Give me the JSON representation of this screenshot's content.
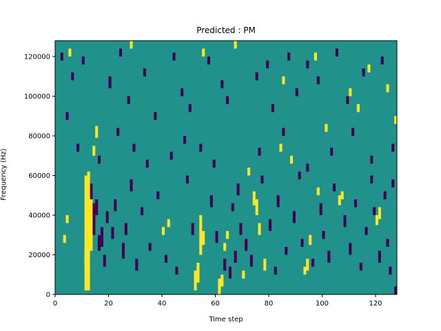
{
  "chart_data": {
    "type": "heatmap",
    "title": "Predicted : PM",
    "xlabel": "Time step",
    "ylabel": "Frequency (Hz)",
    "xlim": [
      0,
      128
    ],
    "ylim": [
      0,
      128000
    ],
    "xticks": [
      0,
      20,
      40,
      60,
      80,
      100,
      120
    ],
    "yticks": [
      0,
      20000,
      40000,
      60000,
      80000,
      100000,
      120000
    ],
    "xtick_labels": [
      "0",
      "20",
      "40",
      "60",
      "80",
      "100",
      "120"
    ],
    "ytick_labels": [
      "0",
      "20000",
      "40000",
      "60000",
      "80000",
      "100000",
      "120000"
    ],
    "n_time_steps": 128,
    "n_freq_bins": 128,
    "bin_height_hz": 1000,
    "background_value": 0,
    "colors": {
      "low": "#440154",
      "mid": "#21918c",
      "high": "#fde725"
    },
    "legend": "none",
    "grid": false,
    "high_cells": [
      [
        11,
        2,
        60
      ],
      [
        12,
        2,
        60
      ],
      [
        11,
        14,
        22
      ],
      [
        12,
        28,
        62
      ],
      [
        13,
        22,
        48
      ],
      [
        52,
        2,
        12
      ],
      [
        53,
        6,
        16
      ],
      [
        54,
        20,
        40
      ],
      [
        55,
        25,
        32
      ],
      [
        61,
        0,
        8
      ],
      [
        62,
        4,
        10
      ],
      [
        63,
        22,
        26
      ],
      [
        64,
        28,
        32
      ],
      [
        74,
        45,
        52
      ],
      [
        75,
        40,
        48
      ],
      [
        76,
        30,
        36
      ],
      [
        78,
        12,
        18
      ],
      [
        93,
        10,
        14
      ],
      [
        94,
        12,
        18
      ],
      [
        95,
        25,
        30
      ],
      [
        106,
        45,
        50
      ],
      [
        107,
        48,
        52
      ],
      [
        120,
        35,
        40
      ],
      [
        121,
        38,
        44
      ],
      [
        15,
        79,
        85
      ],
      [
        14,
        70,
        75
      ],
      [
        4,
        36,
        40
      ],
      [
        3,
        26,
        30
      ],
      [
        40,
        30,
        34
      ],
      [
        42,
        34,
        38
      ],
      [
        70,
        8,
        12
      ],
      [
        72,
        60,
        64
      ],
      [
        84,
        72,
        76
      ],
      [
        88,
        66,
        70
      ],
      [
        98,
        50,
        54
      ],
      [
        101,
        82,
        86
      ],
      [
        110,
        100,
        104
      ],
      [
        117,
        112,
        116
      ],
      [
        124,
        102,
        106
      ],
      [
        127,
        86,
        90
      ],
      [
        5,
        120,
        124
      ],
      [
        28,
        124,
        128
      ],
      [
        55,
        120,
        124
      ],
      [
        67,
        124,
        128
      ],
      [
        85,
        106,
        110
      ],
      [
        97,
        118,
        122
      ],
      [
        113,
        92,
        96
      ]
    ],
    "low_cells": [
      [
        13,
        36,
        56
      ],
      [
        14,
        30,
        46
      ],
      [
        15,
        40,
        48
      ],
      [
        16,
        22,
        30
      ],
      [
        17,
        24,
        34
      ],
      [
        18,
        14,
        20
      ],
      [
        19,
        36,
        42
      ],
      [
        21,
        28,
        34
      ],
      [
        22,
        42,
        48
      ],
      [
        25,
        18,
        26
      ],
      [
        26,
        30,
        36
      ],
      [
        28,
        52,
        58
      ],
      [
        30,
        12,
        18
      ],
      [
        32,
        40,
        44
      ],
      [
        35,
        22,
        26
      ],
      [
        38,
        48,
        52
      ],
      [
        41,
        16,
        20
      ],
      [
        45,
        10,
        14
      ],
      [
        49,
        56,
        60
      ],
      [
        51,
        30,
        36
      ],
      [
        58,
        44,
        50
      ],
      [
        60,
        26,
        32
      ],
      [
        63,
        12,
        18
      ],
      [
        65,
        8,
        14
      ],
      [
        66,
        42,
        46
      ],
      [
        67,
        16,
        22
      ],
      [
        68,
        50,
        56
      ],
      [
        69,
        30,
        36
      ],
      [
        71,
        22,
        28
      ],
      [
        73,
        14,
        20
      ],
      [
        77,
        56,
        60
      ],
      [
        80,
        32,
        38
      ],
      [
        82,
        10,
        14
      ],
      [
        83,
        44,
        50
      ],
      [
        86,
        20,
        24
      ],
      [
        89,
        36,
        42
      ],
      [
        91,
        58,
        62
      ],
      [
        92,
        24,
        28
      ],
      [
        96,
        14,
        18
      ],
      [
        99,
        40,
        46
      ],
      [
        100,
        28,
        32
      ],
      [
        102,
        16,
        22
      ],
      [
        104,
        52,
        56
      ],
      [
        108,
        34,
        40
      ],
      [
        110,
        20,
        26
      ],
      [
        112,
        44,
        48
      ],
      [
        114,
        12,
        16
      ],
      [
        116,
        30,
        34
      ],
      [
        118,
        56,
        60
      ],
      [
        119,
        40,
        44
      ],
      [
        121,
        16,
        22
      ],
      [
        123,
        48,
        52
      ],
      [
        124,
        24,
        28
      ],
      [
        125,
        10,
        14
      ],
      [
        126,
        54,
        58
      ],
      [
        127,
        0,
        4
      ],
      [
        2,
        118,
        122
      ],
      [
        6,
        108,
        112
      ],
      [
        10,
        116,
        120
      ],
      [
        20,
        104,
        110
      ],
      [
        24,
        120,
        124
      ],
      [
        27,
        96,
        100
      ],
      [
        33,
        110,
        114
      ],
      [
        37,
        88,
        92
      ],
      [
        44,
        118,
        122
      ],
      [
        47,
        100,
        104
      ],
      [
        50,
        92,
        96
      ],
      [
        57,
        116,
        120
      ],
      [
        62,
        104,
        108
      ],
      [
        64,
        96,
        100
      ],
      [
        75,
        108,
        112
      ],
      [
        79,
        114,
        118
      ],
      [
        81,
        92,
        96
      ],
      [
        87,
        118,
        122
      ],
      [
        90,
        100,
        104
      ],
      [
        94,
        114,
        118
      ],
      [
        98,
        106,
        110
      ],
      [
        105,
        120,
        124
      ],
      [
        109,
        96,
        100
      ],
      [
        115,
        110,
        114
      ],
      [
        122,
        116,
        120
      ],
      [
        4,
        88,
        92
      ],
      [
        8,
        72,
        76
      ],
      [
        16,
        66,
        70
      ],
      [
        23,
        80,
        84
      ],
      [
        29,
        72,
        76
      ],
      [
        34,
        64,
        68
      ],
      [
        43,
        68,
        72
      ],
      [
        48,
        76,
        80
      ],
      [
        54,
        72,
        76
      ],
      [
        59,
        64,
        68
      ],
      [
        76,
        70,
        74
      ],
      [
        85,
        80,
        84
      ],
      [
        94,
        62,
        66
      ],
      [
        103,
        70,
        74
      ],
      [
        111,
        80,
        84
      ],
      [
        118,
        66,
        70
      ],
      [
        126,
        72,
        76
      ]
    ]
  }
}
